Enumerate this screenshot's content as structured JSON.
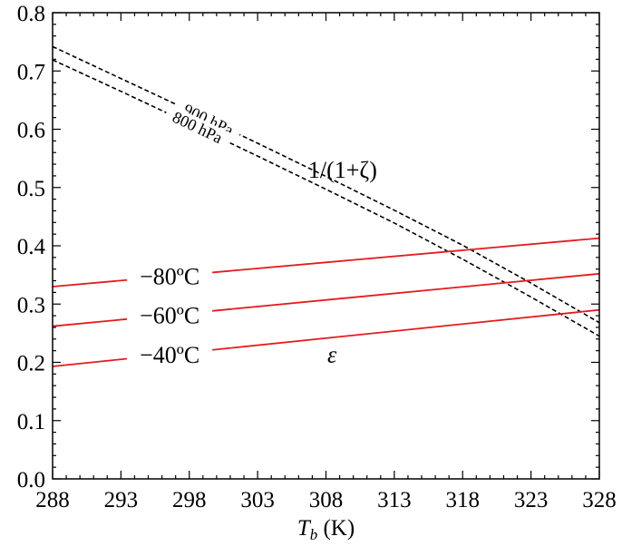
{
  "chart_data": {
    "type": "line",
    "xlabel_main": "T",
    "xlabel_sub": "b",
    "xlabel_unit": " (K)",
    "xlim": [
      288,
      328
    ],
    "ylim": [
      0.0,
      0.8
    ],
    "xticks": [
      288,
      293,
      298,
      303,
      308,
      313,
      318,
      323,
      328
    ],
    "yticks": [
      "0.0",
      "0.1",
      "0.2",
      "0.3",
      "0.4",
      "0.5",
      "0.6",
      "0.7",
      "0.8"
    ],
    "grid": false,
    "series": [
      {
        "label": "900 hPa",
        "color": "#000000",
        "dash": true,
        "x": [
          288,
          293,
          298,
          303,
          308,
          313,
          318,
          323,
          328
        ],
        "y": [
          0.742,
          0.687,
          0.632,
          0.576,
          0.519,
          0.461,
          0.401,
          0.336,
          0.268
        ]
      },
      {
        "label": "800 hPa",
        "color": "#000000",
        "dash": true,
        "x": [
          288,
          293,
          298,
          303,
          308,
          313,
          318,
          323,
          328
        ],
        "y": [
          0.719,
          0.665,
          0.61,
          0.554,
          0.497,
          0.439,
          0.377,
          0.312,
          0.245
        ]
      },
      {
        "label": "−80ºC",
        "color": "#e41a1c",
        "dash": false,
        "x": [
          288,
          328
        ],
        "y": [
          0.33,
          0.413
        ]
      },
      {
        "label": "−60ºC",
        "color": "#e41a1c",
        "dash": false,
        "x": [
          288,
          328
        ],
        "y": [
          0.262,
          0.352
        ]
      },
      {
        "label": "−40ºC",
        "color": "#e41a1c",
        "dash": false,
        "x": [
          288,
          328
        ],
        "y": [
          0.193,
          0.29
        ]
      }
    ],
    "annotations": {
      "zeta_label": "1/(1+ζ)",
      "epsilon_label": "ε"
    }
  }
}
